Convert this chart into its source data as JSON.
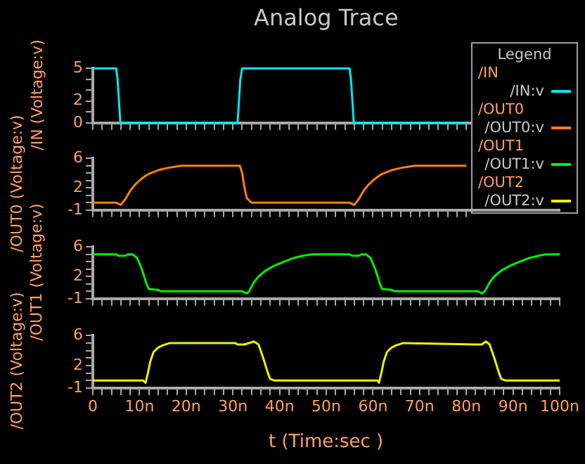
{
  "chart_data": [
    {
      "type": "line",
      "title": "Analog Trace",
      "ylabel": "/IN (Voltage:v)",
      "legend_title": "/IN",
      "annotations": [
        "Legend"
      ],
      "legend": "top right",
      "marker": "none",
      "line_style": "solid",
      "tick_labels": "y",
      "xlim": [
        0,
        100
      ],
      "xticks": [
        {
          "value": 0,
          "label": null
        },
        {
          "value": 2,
          "label": null
        },
        {
          "value": 4,
          "label": null
        },
        {
          "value": 6,
          "label": null
        },
        {
          "value": 8,
          "label": null
        },
        {
          "value": 10,
          "label": null
        },
        {
          "value": 12,
          "label": null
        },
        {
          "value": 14,
          "label": null
        },
        {
          "value": 16,
          "label": null
        },
        {
          "value": 18,
          "label": null
        },
        {
          "value": 20,
          "label": null
        },
        {
          "value": 22,
          "label": null
        },
        {
          "value": 24,
          "label": null
        },
        {
          "value": 26,
          "label": null
        },
        {
          "value": 28,
          "label": null
        },
        {
          "value": 30,
          "label": null
        },
        {
          "value": 32,
          "label": null
        },
        {
          "value": 34,
          "label": null
        },
        {
          "value": 36,
          "label": null
        },
        {
          "value": 38,
          "label": null
        },
        {
          "value": 40,
          "label": null
        },
        {
          "value": 42,
          "label": null
        },
        {
          "value": 44,
          "label": null
        },
        {
          "value": 46,
          "label": null
        },
        {
          "value": 48,
          "label": null
        },
        {
          "value": 50,
          "label": null
        },
        {
          "value": 52,
          "label": null
        },
        {
          "value": 54,
          "label": null
        },
        {
          "value": 56,
          "label": null
        },
        {
          "value": 58,
          "label": null
        },
        {
          "value": 60,
          "label": null
        },
        {
          "value": 62,
          "label": null
        },
        {
          "value": 64,
          "label": null
        },
        {
          "value": 66,
          "label": null
        },
        {
          "value": 68,
          "label": null
        },
        {
          "value": 70,
          "label": null
        },
        {
          "value": 72,
          "label": null
        },
        {
          "value": 74,
          "label": null
        },
        {
          "value": 76,
          "label": null
        },
        {
          "value": 78,
          "label": null
        },
        {
          "value": 80,
          "label": null
        }
      ],
      "ylim": [
        0,
        5
      ],
      "yticks": [
        0,
        {
          "value": 1,
          "label": null
        },
        2,
        {
          "value": 3,
          "label": null
        },
        {
          "value": 4,
          "label": null
        },
        5
      ],
      "series": [
        {
          "name": "/IN:v",
          "color": "#00e8f0",
          "x": [
            0,
            5,
            5.3,
            5.6,
            5.9,
            31,
            31.3,
            31.6,
            32,
            55,
            55.3,
            55.6,
            55.9,
            80
          ],
          "values": [
            5,
            5,
            4,
            2,
            0,
            0,
            2,
            4,
            5,
            5,
            4,
            2,
            0,
            0
          ]
        }
      ]
    },
    {
      "type": "line",
      "ylabel": "/OUT0 (Voltage:v)",
      "legend_title": "/OUT0",
      "legend": "top right",
      "marker": "none",
      "line_style": "solid",
      "tick_labels": "y",
      "xlim": [
        0,
        100
      ],
      "xticks": [
        {
          "value": 0,
          "label": null
        },
        {
          "value": 2,
          "label": null
        },
        {
          "value": 4,
          "label": null
        },
        {
          "value": 6,
          "label": null
        },
        {
          "value": 8,
          "label": null
        },
        {
          "value": 10,
          "label": null
        },
        {
          "value": 12,
          "label": null
        },
        {
          "value": 14,
          "label": null
        },
        {
          "value": 16,
          "label": null
        },
        {
          "value": 18,
          "label": null
        },
        {
          "value": 20,
          "label": null
        },
        {
          "value": 22,
          "label": null
        },
        {
          "value": 24,
          "label": null
        },
        {
          "value": 26,
          "label": null
        },
        {
          "value": 28,
          "label": null
        },
        {
          "value": 30,
          "label": null
        },
        {
          "value": 32,
          "label": null
        },
        {
          "value": 34,
          "label": null
        },
        {
          "value": 36,
          "label": null
        },
        {
          "value": 38,
          "label": null
        },
        {
          "value": 40,
          "label": null
        },
        {
          "value": 42,
          "label": null
        },
        {
          "value": 44,
          "label": null
        },
        {
          "value": 46,
          "label": null
        },
        {
          "value": 48,
          "label": null
        },
        {
          "value": 50,
          "label": null
        },
        {
          "value": 52,
          "label": null
        },
        {
          "value": 54,
          "label": null
        },
        {
          "value": 56,
          "label": null
        },
        {
          "value": 58,
          "label": null
        },
        {
          "value": 60,
          "label": null
        },
        {
          "value": 62,
          "label": null
        },
        {
          "value": 64,
          "label": null
        },
        {
          "value": 66,
          "label": null
        },
        {
          "value": 68,
          "label": null
        },
        {
          "value": 70,
          "label": null
        },
        {
          "value": 72,
          "label": null
        },
        {
          "value": 74,
          "label": null
        },
        {
          "value": 76,
          "label": null
        },
        {
          "value": 78,
          "label": null
        },
        {
          "value": 80,
          "label": null
        }
      ],
      "ylim": [
        -1,
        6
      ],
      "yticks": [
        -1,
        {
          "value": 0,
          "label": null
        },
        {
          "value": 1,
          "label": null
        },
        2,
        {
          "value": 3,
          "label": null
        },
        {
          "value": 4,
          "label": null
        },
        {
          "value": 5,
          "label": null
        },
        6
      ],
      "series": [
        {
          "name": "/OUT0:v",
          "color": "#ff8010",
          "x": [
            0,
            5,
            6,
            7,
            8,
            9,
            10,
            11,
            12,
            14,
            16,
            18,
            19,
            31.5,
            32,
            32.5,
            33,
            34,
            55,
            56,
            57,
            58,
            59,
            60,
            61,
            62,
            64,
            66,
            68,
            69,
            80
          ],
          "values": [
            0,
            0,
            -0.3,
            0.5,
            1.6,
            2.4,
            3,
            3.5,
            3.9,
            4.4,
            4.7,
            4.9,
            5,
            5,
            4,
            2,
            0.6,
            0,
            0,
            -0.3,
            0.5,
            1.6,
            2.4,
            3,
            3.5,
            3.9,
            4.4,
            4.7,
            4.9,
            5,
            5
          ]
        }
      ]
    },
    {
      "type": "line",
      "ylabel": "/OUT1 (Voltage:v)",
      "legend_title": "/OUT1",
      "legend": "top right",
      "marker": "none",
      "line_style": "solid",
      "tick_labels": "y",
      "xlim": [
        0,
        100
      ],
      "xticks": [
        {
          "value": 0,
          "label": null
        },
        {
          "value": 2,
          "label": null
        },
        {
          "value": 4,
          "label": null
        },
        {
          "value": 6,
          "label": null
        },
        {
          "value": 8,
          "label": null
        },
        {
          "value": 10,
          "label": null
        },
        {
          "value": 12,
          "label": null
        },
        {
          "value": 14,
          "label": null
        },
        {
          "value": 16,
          "label": null
        },
        {
          "value": 18,
          "label": null
        },
        {
          "value": 20,
          "label": null
        },
        {
          "value": 22,
          "label": null
        },
        {
          "value": 24,
          "label": null
        },
        {
          "value": 26,
          "label": null
        },
        {
          "value": 28,
          "label": null
        },
        {
          "value": 30,
          "label": null
        },
        {
          "value": 32,
          "label": null
        },
        {
          "value": 34,
          "label": null
        },
        {
          "value": 36,
          "label": null
        },
        {
          "value": 38,
          "label": null
        },
        {
          "value": 40,
          "label": null
        },
        {
          "value": 42,
          "label": null
        },
        {
          "value": 44,
          "label": null
        },
        {
          "value": 46,
          "label": null
        },
        {
          "value": 48,
          "label": null
        },
        {
          "value": 50,
          "label": null
        },
        {
          "value": 52,
          "label": null
        },
        {
          "value": 54,
          "label": null
        },
        {
          "value": 56,
          "label": null
        },
        {
          "value": 58,
          "label": null
        },
        {
          "value": 60,
          "label": null
        },
        {
          "value": 62,
          "label": null
        },
        {
          "value": 64,
          "label": null
        },
        {
          "value": 66,
          "label": null
        },
        {
          "value": 68,
          "label": null
        },
        {
          "value": 70,
          "label": null
        },
        {
          "value": 72,
          "label": null
        },
        {
          "value": 74,
          "label": null
        },
        {
          "value": 76,
          "label": null
        },
        {
          "value": 78,
          "label": null
        },
        {
          "value": 80,
          "label": null
        },
        {
          "value": 82,
          "label": null
        },
        {
          "value": 84,
          "label": null
        },
        {
          "value": 86,
          "label": null
        },
        {
          "value": 88,
          "label": null
        },
        {
          "value": 90,
          "label": null
        },
        {
          "value": 92,
          "label": null
        },
        {
          "value": 94,
          "label": null
        },
        {
          "value": 96,
          "label": null
        },
        {
          "value": 98,
          "label": null
        },
        {
          "value": 100,
          "label": null
        }
      ],
      "ylim": [
        -1,
        6
      ],
      "yticks": [
        -1,
        {
          "value": 0,
          "label": null
        },
        {
          "value": 1,
          "label": null
        },
        2,
        {
          "value": 3,
          "label": null
        },
        {
          "value": 4,
          "label": null
        },
        {
          "value": 5,
          "label": null
        },
        6
      ],
      "series": [
        {
          "name": "/OUT1:v",
          "color": "#00f000",
          "x": [
            0,
            5,
            5.5,
            7,
            7.5,
            8.5,
            9.5,
            10.5,
            11,
            11.5,
            12,
            14,
            14.5,
            32,
            33,
            33.5,
            34.5,
            35.5,
            37,
            39,
            41,
            43,
            45,
            47,
            55,
            55.5,
            57,
            57.5,
            58.5,
            59.5,
            60.5,
            61,
            61.5,
            62,
            64,
            64.5,
            82.5,
            83.3,
            84,
            85,
            86,
            87.5,
            89.5,
            91.5,
            93.5,
            95.5,
            97,
            100
          ],
          "values": [
            5,
            5,
            4.8,
            4.8,
            5,
            5,
            4.5,
            3,
            2,
            1,
            0.3,
            0.2,
            0,
            0,
            -0.3,
            0,
            1.2,
            2,
            2.8,
            3.5,
            4,
            4.5,
            4.8,
            5,
            5,
            4.8,
            4.8,
            5,
            5,
            4.5,
            3,
            2,
            1,
            0.3,
            0.2,
            0,
            0,
            -0.3,
            0,
            1.2,
            2,
            2.8,
            3.5,
            4,
            4.5,
            4.8,
            5,
            5
          ]
        }
      ]
    },
    {
      "type": "line",
      "ylabel": "/OUT2 (Voltage:v)",
      "xlabel": "t (Time:sec )",
      "legend_title": "/OUT2",
      "legend": "top right",
      "marker": "none",
      "line_style": "solid",
      "xlim": [
        0,
        100
      ],
      "xticks": [
        0,
        {
          "value": 2,
          "label": null
        },
        {
          "value": 4,
          "label": null
        },
        {
          "value": 6,
          "label": null
        },
        {
          "value": 8,
          "label": null
        },
        {
          "value": 10,
          "label": "10n"
        },
        {
          "value": 12,
          "label": null
        },
        {
          "value": 14,
          "label": null
        },
        {
          "value": 16,
          "label": null
        },
        {
          "value": 18,
          "label": null
        },
        {
          "value": 20,
          "label": "20n"
        },
        {
          "value": 22,
          "label": null
        },
        {
          "value": 24,
          "label": null
        },
        {
          "value": 26,
          "label": null
        },
        {
          "value": 28,
          "label": null
        },
        {
          "value": 30,
          "label": "30n"
        },
        {
          "value": 32,
          "label": null
        },
        {
          "value": 34,
          "label": null
        },
        {
          "value": 36,
          "label": null
        },
        {
          "value": 38,
          "label": null
        },
        {
          "value": 40,
          "label": "40n"
        },
        {
          "value": 42,
          "label": null
        },
        {
          "value": 44,
          "label": null
        },
        {
          "value": 46,
          "label": null
        },
        {
          "value": 48,
          "label": null
        },
        {
          "value": 50,
          "label": "50n"
        },
        {
          "value": 52,
          "label": null
        },
        {
          "value": 54,
          "label": null
        },
        {
          "value": 56,
          "label": null
        },
        {
          "value": 58,
          "label": null
        },
        {
          "value": 60,
          "label": "60n"
        },
        {
          "value": 62,
          "label": null
        },
        {
          "value": 64,
          "label": null
        },
        {
          "value": 66,
          "label": null
        },
        {
          "value": 68,
          "label": null
        },
        {
          "value": 70,
          "label": "70n"
        },
        {
          "value": 72,
          "label": null
        },
        {
          "value": 74,
          "label": null
        },
        {
          "value": 76,
          "label": null
        },
        {
          "value": 78,
          "label": null
        },
        {
          "value": 80,
          "label": "80n"
        },
        {
          "value": 82,
          "label": null
        },
        {
          "value": 84,
          "label": null
        },
        {
          "value": 86,
          "label": null
        },
        {
          "value": 88,
          "label": null
        },
        {
          "value": 90,
          "label": "90n"
        },
        {
          "value": 92,
          "label": null
        },
        {
          "value": 94,
          "label": null
        },
        {
          "value": 96,
          "label": null
        },
        {
          "value": 98,
          "label": null
        },
        {
          "value": 100,
          "label": "100n"
        }
      ],
      "ylim": [
        -1,
        6
      ],
      "yticks": [
        -1,
        {
          "value": 0,
          "label": null
        },
        {
          "value": 1,
          "label": null
        },
        2,
        {
          "value": 3,
          "label": null
        },
        {
          "value": 4,
          "label": null
        },
        {
          "value": 5,
          "label": null
        },
        6
      ],
      "series": [
        {
          "name": "/OUT2:v",
          "color": "#f0f000",
          "x": [
            0,
            10.8,
            11.3,
            11.8,
            12.3,
            13,
            14,
            15,
            16.5,
            30.5,
            31,
            32.5,
            34.5,
            35.5,
            36.5,
            37.5,
            38,
            39,
            61,
            61.3,
            61.8,
            62.3,
            63,
            64,
            65,
            66.5,
            82,
            83.3,
            84.2,
            85,
            86,
            87,
            87.5,
            88.5,
            100
          ],
          "values": [
            0,
            0,
            -0.3,
            1,
            2.5,
            3.8,
            4.4,
            4.7,
            5,
            5,
            4.8,
            4.8,
            5.2,
            4.8,
            3,
            1,
            0.2,
            0,
            0,
            -0.3,
            1,
            2.5,
            3.8,
            4.4,
            4.7,
            5,
            4.8,
            4.8,
            5.2,
            4.8,
            3,
            1,
            0.2,
            0,
            0
          ]
        }
      ]
    }
  ]
}
